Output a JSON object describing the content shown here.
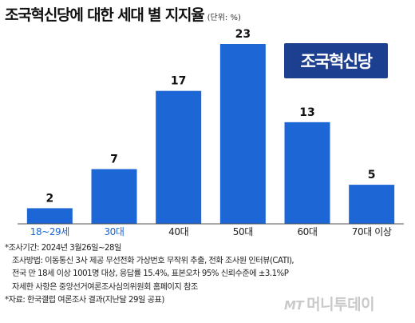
{
  "title": "조국혁신당에 대한 세대 별 지지율",
  "unit_label": "(단위: %)",
  "logo_text": "조국혁신당",
  "chart_data": {
    "type": "bar",
    "title": "조국혁신당에 대한 세대 별 지지율",
    "unit": "(단위: %)",
    "categories": [
      "18~29세",
      "30대",
      "40대",
      "50대",
      "60대",
      "70대 이상"
    ],
    "values": [
      2,
      7,
      17,
      23,
      13,
      5
    ],
    "ylim": [
      0,
      25
    ],
    "grid": false,
    "legend": "none",
    "colors": {
      "bar": "#1d66d6",
      "highlight_label": "#1d66d6",
      "label": "#222222",
      "axis": "#555555"
    },
    "highlighted_categories": [
      0,
      1
    ]
  },
  "notes": [
    "*조사기간: 2024년 3월26일~28일",
    "조사방법: 이동통신 3사 제공 무선전화 가상번호 무작위 추출, 전화 조사원 인터뷰(CATI),",
    "전국 만 18세 이상 1001명 대상, 응답률 15.4%, 표본오차 95% 신뢰수준에 ±3.1%P",
    "자세한 사항은 중앙선거여론조사심의위원회 홈페이지 참조",
    "*자료: 한국갤럽 여론조사 결과(지난달 29일 공표)"
  ],
  "watermark": {
    "mark": "MT",
    "text": "머니투데이"
  }
}
